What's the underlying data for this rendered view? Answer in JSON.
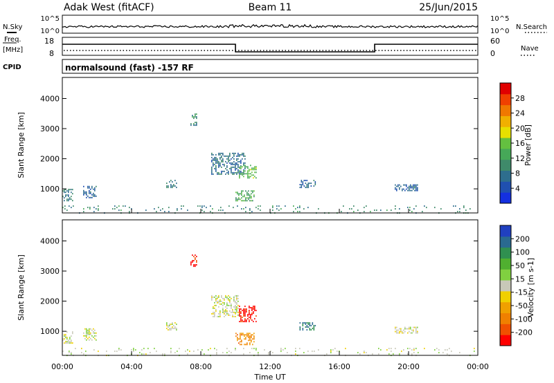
{
  "header": {
    "station": "Adak West (fitACF)",
    "beam": "Beam 11",
    "date": "25/Jun/2015"
  },
  "top_panels": {
    "nsky_label": "N.Sky",
    "nsearch_label": "N.Search",
    "nsky_ticks": [
      "10^5",
      "10^0"
    ],
    "nsearch_ticks": [
      "10^5",
      "10^0"
    ],
    "freq_label_line1": "Freq.",
    "freq_label_line2": "[MHz]",
    "freq_ticks": [
      "18",
      "8"
    ],
    "nave_label": "Nave",
    "nave_ticks": [
      "60",
      "0"
    ],
    "cpid_label": "CPID",
    "cpid_text": "normalsound (fast) -157 RF"
  },
  "colors": {
    "power_scale": [
      "#1430e0",
      "#2050b0",
      "#2e6e8e",
      "#3f8a6a",
      "#46a858",
      "#64c040",
      "#e6e000",
      "#f0b000",
      "#f07800",
      "#f04000",
      "#e00000"
    ],
    "velocity_scale": [
      "#ff0000",
      "#f05000",
      "#f08000",
      "#f0a000",
      "#f0d000",
      "#c8c8b8",
      "#80d040",
      "#50b030",
      "#309050",
      "#2a6a90",
      "#2040c0"
    ]
  },
  "chart_data": [
    {
      "type": "heatmap",
      "name": "power",
      "xlabel": "",
      "ylabel": "Slant Range [km]",
      "xlim": [
        0,
        24
      ],
      "ylim": [
        200,
        4700
      ],
      "y_ticks": [
        "1000",
        "2000",
        "3000",
        "4000"
      ],
      "colorbar_label": "Power [dB]",
      "colorbar_ticks": [
        "4",
        "8",
        "12",
        "16",
        "20",
        "24",
        "28"
      ],
      "colorbar_range": [
        0,
        30
      ],
      "regions": [
        {
          "t0": 0.0,
          "t1": 0.6,
          "r0": 600,
          "r1": 1000,
          "value": 8
        },
        {
          "t0": 1.2,
          "t1": 2.0,
          "r0": 700,
          "r1": 1100,
          "value": 6
        },
        {
          "t0": 6.0,
          "t1": 6.6,
          "r0": 1050,
          "r1": 1300,
          "value": 8
        },
        {
          "t0": 7.4,
          "t1": 7.8,
          "r0": 3100,
          "r1": 3550,
          "value": 10
        },
        {
          "t0": 8.6,
          "t1": 10.6,
          "r0": 1500,
          "r1": 2200,
          "value": 7
        },
        {
          "t0": 10.2,
          "t1": 11.2,
          "r0": 1350,
          "r1": 1800,
          "value": 14
        },
        {
          "t0": 10.0,
          "t1": 11.1,
          "r0": 600,
          "r1": 950,
          "value": 12
        },
        {
          "t0": 13.7,
          "t1": 14.6,
          "r0": 1050,
          "r1": 1300,
          "value": 6
        },
        {
          "t0": 19.2,
          "t1": 20.5,
          "r0": 950,
          "r1": 1150,
          "value": 6
        },
        {
          "t0": 0.0,
          "t1": 24.0,
          "r0": 200,
          "r1": 450,
          "value": 9
        }
      ]
    },
    {
      "type": "heatmap",
      "name": "velocity",
      "xlabel": "Time UT",
      "ylabel": "Slant Range [km]",
      "xlim": [
        0,
        24
      ],
      "ylim": [
        200,
        4700
      ],
      "x_ticks": [
        "00:00",
        "04:00",
        "08:00",
        "12:00",
        "16:00",
        "20:00",
        "00:00"
      ],
      "y_ticks": [
        "1000",
        "2000",
        "3000",
        "4000"
      ],
      "colorbar_label": "Velocity [m s-1]",
      "colorbar_ticks": [
        "-200",
        "-100",
        "-50",
        "-15",
        "15",
        "50",
        "100",
        "200"
      ],
      "colorbar_range": [
        -250,
        250
      ],
      "regions": [
        {
          "t0": 0.0,
          "t1": 0.6,
          "r0": 600,
          "r1": 1000,
          "value": 0
        },
        {
          "t0": 1.2,
          "t1": 2.0,
          "r0": 700,
          "r1": 1100,
          "value": 0
        },
        {
          "t0": 6.0,
          "t1": 6.6,
          "r0": 1050,
          "r1": 1300,
          "value": 0
        },
        {
          "t0": 7.4,
          "t1": 7.8,
          "r0": 3150,
          "r1": 3550,
          "value": -220
        },
        {
          "t0": 8.6,
          "t1": 10.2,
          "r0": 1500,
          "r1": 2200,
          "value": 0
        },
        {
          "t0": 10.2,
          "t1": 11.2,
          "r0": 1300,
          "r1": 1850,
          "value": -230
        },
        {
          "t0": 10.0,
          "t1": 11.1,
          "r0": 550,
          "r1": 950,
          "value": -120
        },
        {
          "t0": 13.7,
          "t1": 14.6,
          "r0": 1050,
          "r1": 1300,
          "value": 160
        },
        {
          "t0": 19.2,
          "t1": 20.5,
          "r0": 950,
          "r1": 1150,
          "value": 0
        },
        {
          "t0": 0.0,
          "t1": 24.0,
          "r0": 200,
          "r1": 450,
          "value": 10
        }
      ]
    }
  ]
}
